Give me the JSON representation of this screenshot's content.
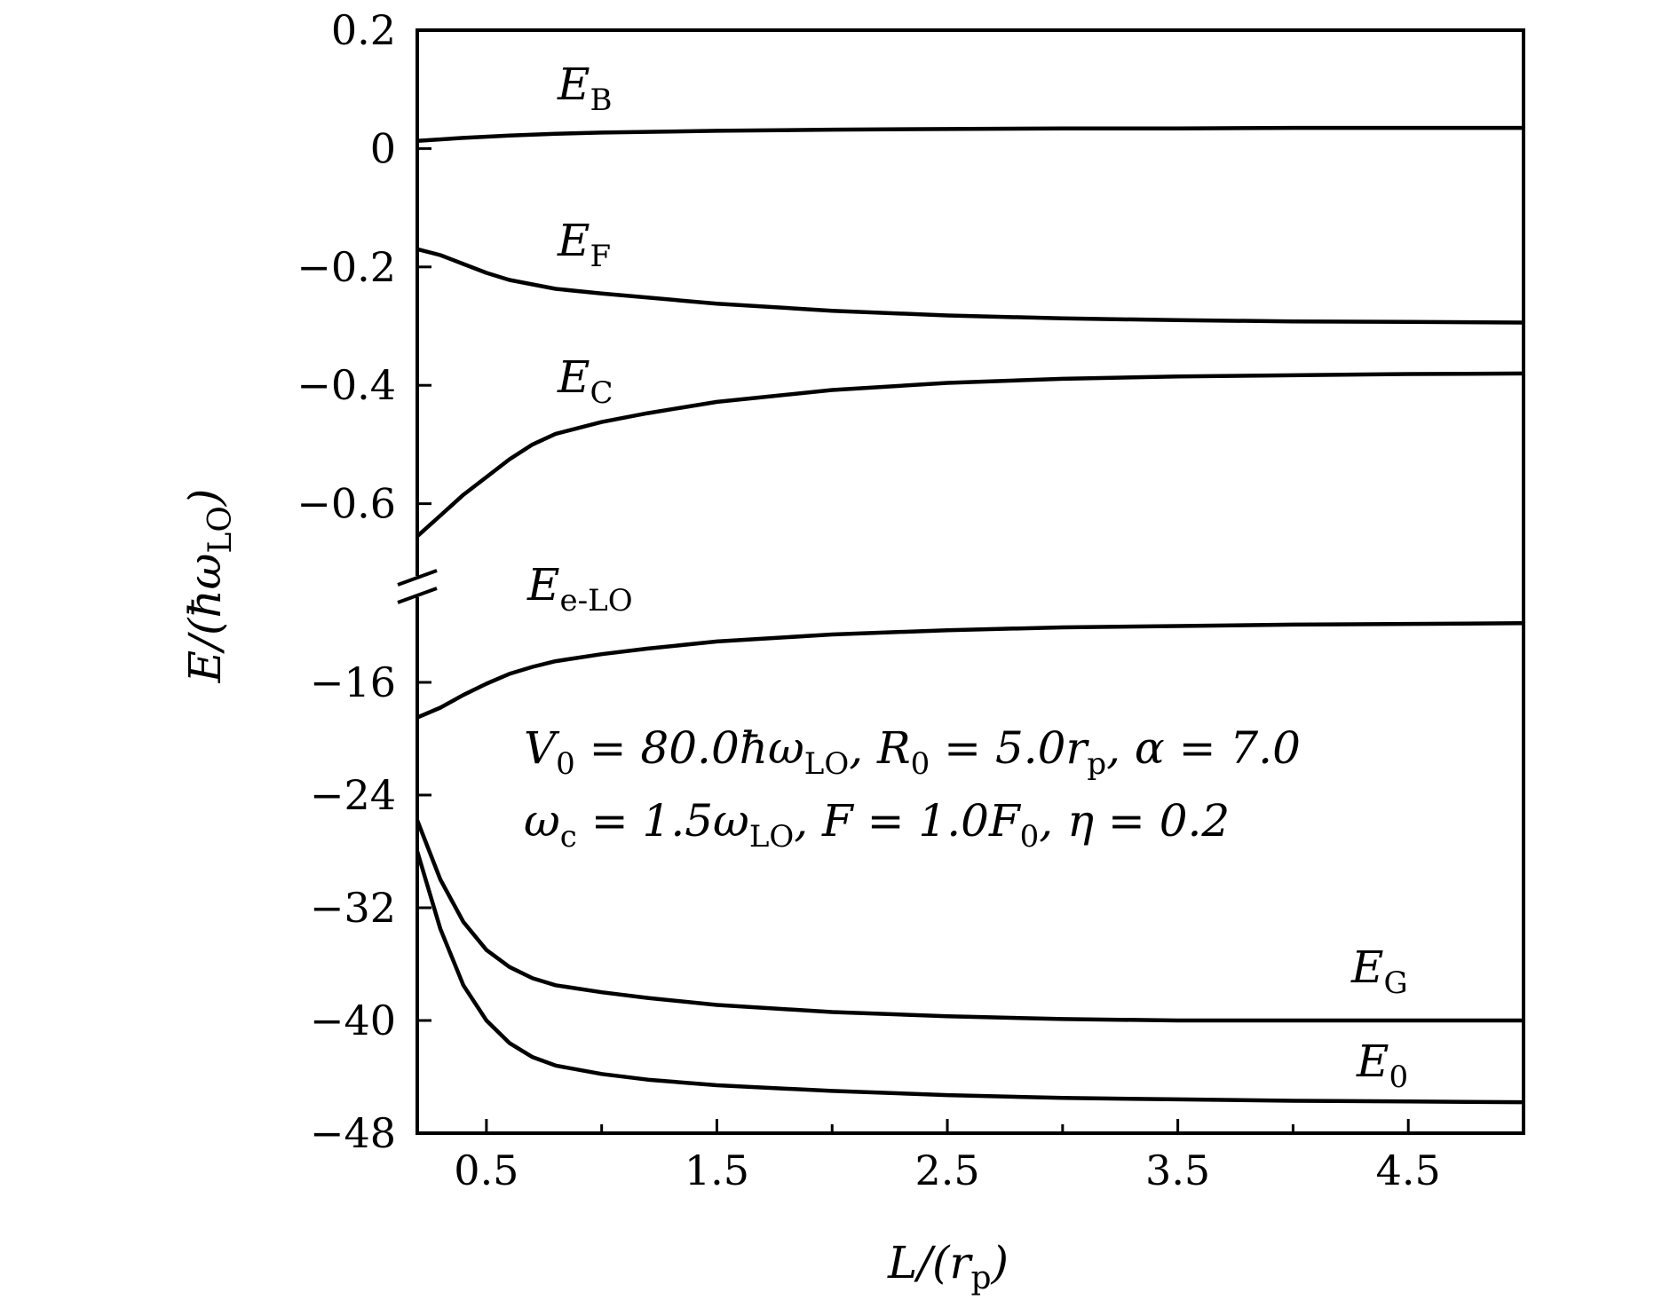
{
  "chart_data": {
    "type": "line",
    "xlabel": "L/(r",
    "xlabel_sub": "p",
    "xlabel_close": ")",
    "ylabel": "E/(ħω",
    "ylabel_sub": "LO",
    "ylabel_close": ")",
    "xlim": [
      0.2,
      5.0
    ],
    "x_ticks_major": [
      0.5,
      1.5,
      2.5,
      3.5,
      4.5
    ],
    "x_tick_labels": [
      "0.5",
      "1.5",
      "2.5",
      "3.5",
      "4.5"
    ],
    "x_ticks_minor": [
      1.0,
      2.0,
      3.0,
      4.0
    ],
    "y_upper": {
      "ylim": [
        -0.74,
        0.2
      ],
      "ticks": [
        0.2,
        0,
        -0.2,
        -0.4,
        -0.6
      ],
      "tick_labels": [
        "0.2",
        "0",
        "−0.2",
        "−0.4",
        "−0.6"
      ]
    },
    "y_lower": {
      "ylim": [
        -48,
        -9.2
      ],
      "ticks": [
        -16,
        -24,
        -32,
        -40,
        -48
      ],
      "tick_labels": [
        "−16",
        "−24",
        "−32",
        "−40",
        "−48"
      ]
    },
    "axis_break": true,
    "series": [
      {
        "name": "E",
        "sub": "B",
        "panel": "upper",
        "x": [
          0.2,
          0.4,
          0.6,
          0.8,
          1.0,
          1.5,
          2.0,
          2.5,
          3.0,
          3.5,
          4.0,
          4.5,
          5.0
        ],
        "y": [
          0.013,
          0.018,
          0.022,
          0.025,
          0.027,
          0.03,
          0.032,
          0.033,
          0.034,
          0.034,
          0.035,
          0.035,
          0.035
        ]
      },
      {
        "name": "E",
        "sub": "F",
        "panel": "upper",
        "x": [
          0.2,
          0.3,
          0.4,
          0.5,
          0.6,
          0.8,
          1.0,
          1.5,
          2.0,
          2.5,
          3.0,
          3.5,
          4.0,
          4.5,
          5.0
        ],
        "y": [
          -0.17,
          -0.18,
          -0.195,
          -0.21,
          -0.222,
          -0.237,
          -0.245,
          -0.262,
          -0.274,
          -0.282,
          -0.287,
          -0.29,
          -0.292,
          -0.293,
          -0.294
        ]
      },
      {
        "name": "E",
        "sub": "C",
        "panel": "upper",
        "x": [
          0.2,
          0.3,
          0.4,
          0.5,
          0.6,
          0.7,
          0.8,
          1.0,
          1.2,
          1.5,
          2.0,
          2.5,
          3.0,
          3.5,
          4.0,
          4.5,
          5.0
        ],
        "y": [
          -0.655,
          -0.62,
          -0.585,
          -0.555,
          -0.525,
          -0.5,
          -0.482,
          -0.462,
          -0.447,
          -0.428,
          -0.408,
          -0.396,
          -0.389,
          -0.385,
          -0.383,
          -0.381,
          -0.38
        ]
      },
      {
        "name": "E",
        "sub": "e-LO",
        "panel": "lower",
        "x": [
          0.2,
          0.3,
          0.4,
          0.5,
          0.6,
          0.7,
          0.8,
          1.0,
          1.2,
          1.5,
          2.0,
          2.5,
          3.0,
          3.5,
          4.0,
          4.5,
          5.0
        ],
        "y": [
          -18.5,
          -17.8,
          -16.9,
          -16.1,
          -15.4,
          -14.9,
          -14.5,
          -14.0,
          -13.6,
          -13.1,
          -12.6,
          -12.3,
          -12.1,
          -12.0,
          -11.9,
          -11.85,
          -11.8
        ]
      },
      {
        "name": "E",
        "sub": "G",
        "panel": "lower",
        "x": [
          0.2,
          0.3,
          0.4,
          0.5,
          0.6,
          0.7,
          0.8,
          1.0,
          1.2,
          1.5,
          2.0,
          2.5,
          3.0,
          3.5,
          4.0,
          4.5,
          5.0
        ],
        "y": [
          -25.8,
          -30.0,
          -33.0,
          -35.0,
          -36.2,
          -37.0,
          -37.5,
          -38.0,
          -38.4,
          -38.9,
          -39.4,
          -39.7,
          -39.9,
          -40.0,
          -40.0,
          -40.0,
          -40.0
        ]
      },
      {
        "name": "E",
        "sub": "0",
        "panel": "lower",
        "x": [
          0.2,
          0.3,
          0.4,
          0.5,
          0.6,
          0.7,
          0.8,
          1.0,
          1.2,
          1.5,
          2.0,
          2.5,
          3.0,
          3.5,
          4.0,
          4.5,
          5.0
        ],
        "y": [
          -28.0,
          -33.5,
          -37.5,
          -40.0,
          -41.6,
          -42.6,
          -43.2,
          -43.8,
          -44.2,
          -44.6,
          -45.0,
          -45.3,
          -45.5,
          -45.6,
          -45.7,
          -45.75,
          -45.8
        ]
      }
    ],
    "annotations": [
      {
        "parts": [
          [
            "V",
            "0",
            "=80.0ħω",
            "LO",
            ", R",
            "0",
            "=5.0r",
            "p",
            ", α=7.0"
          ]
        ]
      },
      {
        "parts": [
          [
            "ω",
            "c",
            "=1.5ω",
            "LO",
            ", F=1.0F",
            "0",
            ", η=0.2"
          ]
        ]
      }
    ],
    "annotation_line1": [
      "V",
      "0",
      " = 80.0ħω",
      "LO",
      ",  R",
      "0",
      " = 5.0r",
      "p",
      ",  α = 7.0"
    ],
    "annotation_line2": [
      "ω",
      "c",
      " = 1.5ω",
      "LO",
      ",  F = 1.0F",
      "0",
      ",  η = 0.2"
    ],
    "grid": false,
    "legend": "none"
  }
}
